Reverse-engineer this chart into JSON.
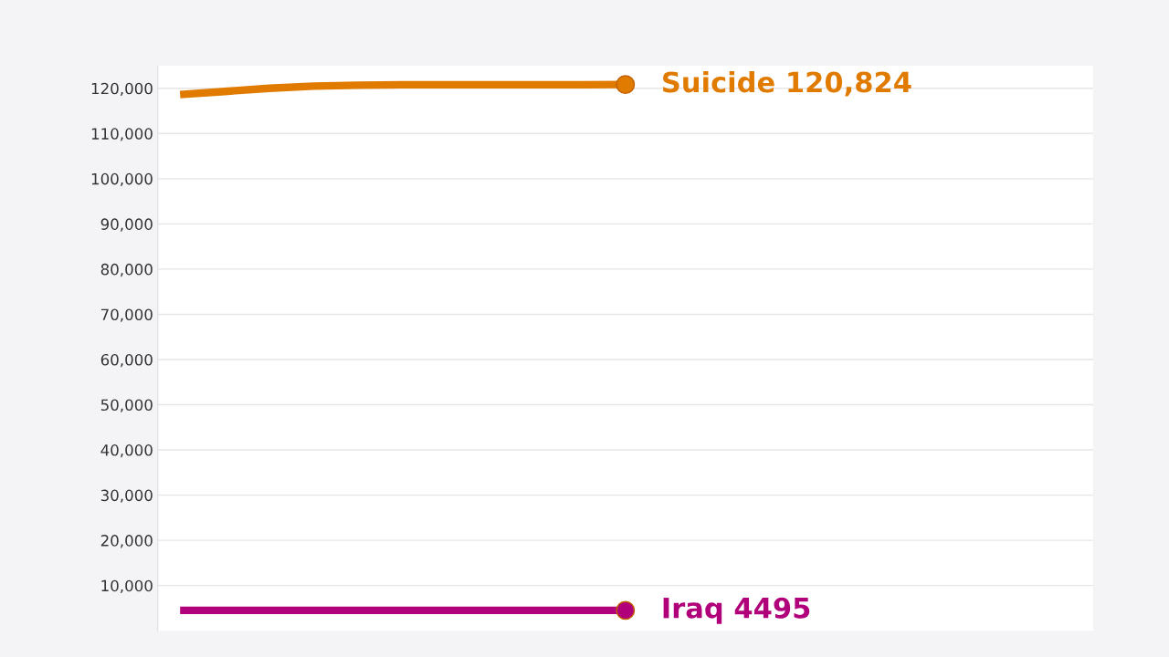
{
  "chart_data": {
    "type": "line",
    "categories": [
      null,
      null,
      null,
      null,
      null,
      null,
      null,
      null,
      null,
      null,
      null,
      null,
      null,
      null,
      null,
      null,
      null,
      null,
      null,
      null,
      null
    ],
    "series": [
      {
        "name": "Suicide",
        "color": "#e07b00",
        "values": [
          118600,
          119300,
          120000,
          120500,
          120700,
          120800,
          120800,
          120800,
          120800,
          120800,
          120824,
          null,
          null,
          null,
          null,
          null,
          null,
          null,
          null,
          null,
          null
        ],
        "value_labels": [
          null,
          null,
          null,
          null,
          null,
          null,
          null,
          null,
          null,
          null,
          "120,824",
          null,
          null,
          null,
          null,
          null,
          null,
          null,
          null,
          null,
          null
        ]
      },
      {
        "name": "Iraq",
        "color": "#b0007a",
        "values": [
          4500,
          4500,
          4500,
          4500,
          4500,
          4500,
          4500,
          4500,
          4500,
          4500,
          4495,
          null,
          null,
          null,
          null,
          null,
          null,
          null,
          null,
          null,
          null
        ],
        "value_labels": [
          null,
          null,
          null,
          null,
          null,
          null,
          null,
          null,
          null,
          null,
          "4495",
          null,
          null,
          null,
          null,
          null,
          null,
          null,
          null,
          null,
          null
        ]
      }
    ],
    "ylim": [
      0,
      125000
    ],
    "yticks": [
      {
        "value": 10000,
        "label": "10,000"
      },
      {
        "value": 20000,
        "label": "20,000"
      },
      {
        "value": 30000,
        "label": "30,000"
      },
      {
        "value": 40000,
        "label": "40,000"
      },
      {
        "value": 50000,
        "label": "50,000"
      },
      {
        "value": 60000,
        "label": "60,000"
      },
      {
        "value": 70000,
        "label": "70,000"
      },
      {
        "value": 80000,
        "label": "80,000"
      },
      {
        "value": 90000,
        "label": "90,000"
      },
      {
        "value": 100000,
        "label": "100,000"
      },
      {
        "value": 110000,
        "label": "110,000"
      },
      {
        "value": 120000,
        "label": "120,000"
      }
    ],
    "grid": "y",
    "tick_labels": "y"
  }
}
